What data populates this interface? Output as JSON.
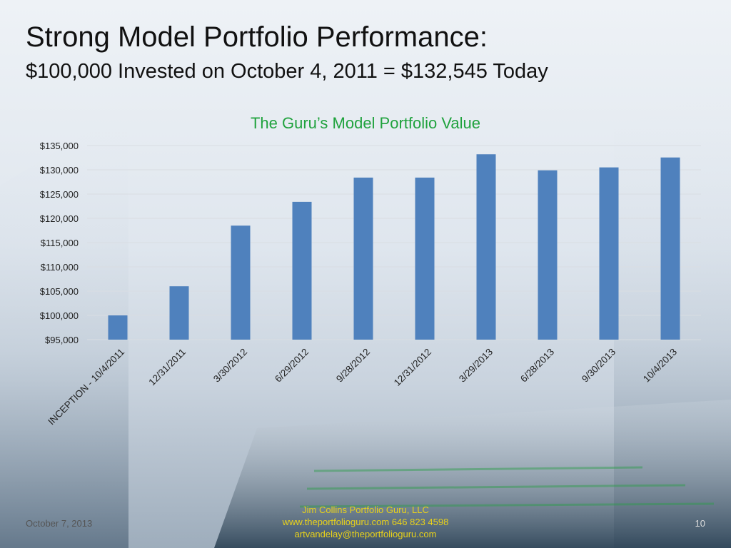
{
  "slide": {
    "title": "Strong Model Portfolio Performance:",
    "subtitle": "$100,000 Invested on October 4, 2011 = $132,545 Today"
  },
  "footer": {
    "date": "October 7, 2013",
    "company": "Jim Collins Portfolio Guru, LLC",
    "contact": "www.theportfolioguru.com 646 823 4598",
    "email": "artvandelay@theportfolioguru.com",
    "page": "10"
  },
  "colors": {
    "bar": "#4f81bd",
    "chart_title": "#1fa23d",
    "gridline": "#d9dde2"
  },
  "chart_data": {
    "type": "bar",
    "title": "The Guru’s Model Portfolio Value",
    "xlabel": "",
    "ylabel": "",
    "categories": [
      "INCEPTION - 10/4/2011",
      "12/31/2011",
      "3/30/2012",
      "6/29/2012",
      "9/28/2012",
      "12/31/2012",
      "3/29/2013",
      "6/28/2013",
      "9/30/2013",
      "10/4/2013"
    ],
    "values": [
      100000,
      106000,
      118500,
      123400,
      128400,
      128400,
      133200,
      129900,
      130500,
      132545
    ],
    "ylim": [
      95000,
      135000
    ],
    "yticks": [
      95000,
      100000,
      105000,
      110000,
      115000,
      120000,
      125000,
      130000,
      135000
    ],
    "ytick_labels": [
      "$95,000",
      "$100,000",
      "$105,000",
      "$110,000",
      "$115,000",
      "$120,000",
      "$125,000",
      "$130,000",
      "$135,000"
    ],
    "grid": true,
    "legend": "none"
  }
}
